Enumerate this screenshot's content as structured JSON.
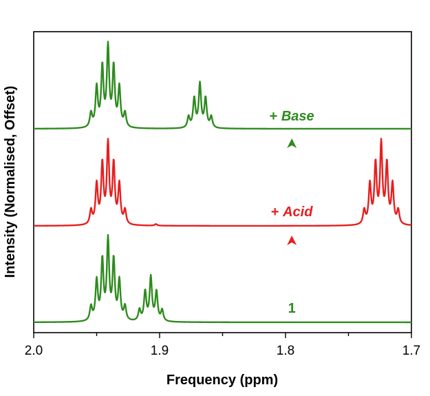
{
  "chart_data": {
    "type": "line",
    "title": "",
    "xlabel": "Frequency (ppm)",
    "ylabel": "Intensity (Normalised, Offset)",
    "xlim": [
      2.0,
      1.7
    ],
    "x_reversed": true,
    "x_ticks": [
      2.0,
      1.9,
      1.8,
      1.7
    ],
    "x_tick_labels": [
      "2.0",
      "1.9",
      "1.8",
      "1.7"
    ],
    "y_ticks_shown": false,
    "grid": false,
    "series": [
      {
        "name": "1",
        "label_parts": [
          "1"
        ],
        "color": "#2e8b1e",
        "offset": 0,
        "peaks": [
          {
            "center": 1.941,
            "spacing": 0.0045,
            "rel": [
              0.18,
              0.5,
              0.75,
              1.0,
              0.75,
              0.5,
              0.18
            ]
          },
          {
            "center": 1.907,
            "spacing": 0.0045,
            "rel": [
              0.14,
              0.37,
              0.55,
              0.37,
              0.14
            ]
          }
        ]
      },
      {
        "name": "+ Acid",
        "label_parts": [
          "+ ",
          "Acid"
        ],
        "color": "#e81e1e",
        "offset": 1,
        "peaks": [
          {
            "center": 1.941,
            "spacing": 0.0045,
            "rel": [
              0.18,
              0.5,
              0.75,
              1.0,
              0.75,
              0.5,
              0.18
            ]
          },
          {
            "center": 1.724,
            "spacing": 0.0045,
            "rel": [
              0.18,
              0.5,
              0.75,
              1.0,
              0.75,
              0.5,
              0.18
            ]
          },
          {
            "center": 1.903,
            "spacing": 0.0045,
            "rel": [
              0.02
            ]
          }
        ]
      },
      {
        "name": "+ Base",
        "label_parts": [
          "+ ",
          "Base"
        ],
        "color": "#2e8b1e",
        "offset": 2,
        "peaks": [
          {
            "center": 1.941,
            "spacing": 0.0045,
            "rel": [
              0.18,
              0.5,
              0.75,
              1.0,
              0.75,
              0.5,
              0.18
            ]
          },
          {
            "center": 1.868,
            "spacing": 0.0045,
            "rel": [
              0.14,
              0.37,
              0.55,
              0.37,
              0.14
            ]
          }
        ]
      }
    ],
    "annotations": [
      {
        "type": "arrow",
        "x": 1.795,
        "from_series": 0,
        "to_series": 1,
        "color_start": "#2e8b1e",
        "color_end": "#e81e1e"
      },
      {
        "type": "arrow",
        "x": 1.795,
        "from_series": 1,
        "to_series": 2,
        "color_start": "#e81e1e",
        "color_end": "#2e8b1e"
      }
    ]
  }
}
